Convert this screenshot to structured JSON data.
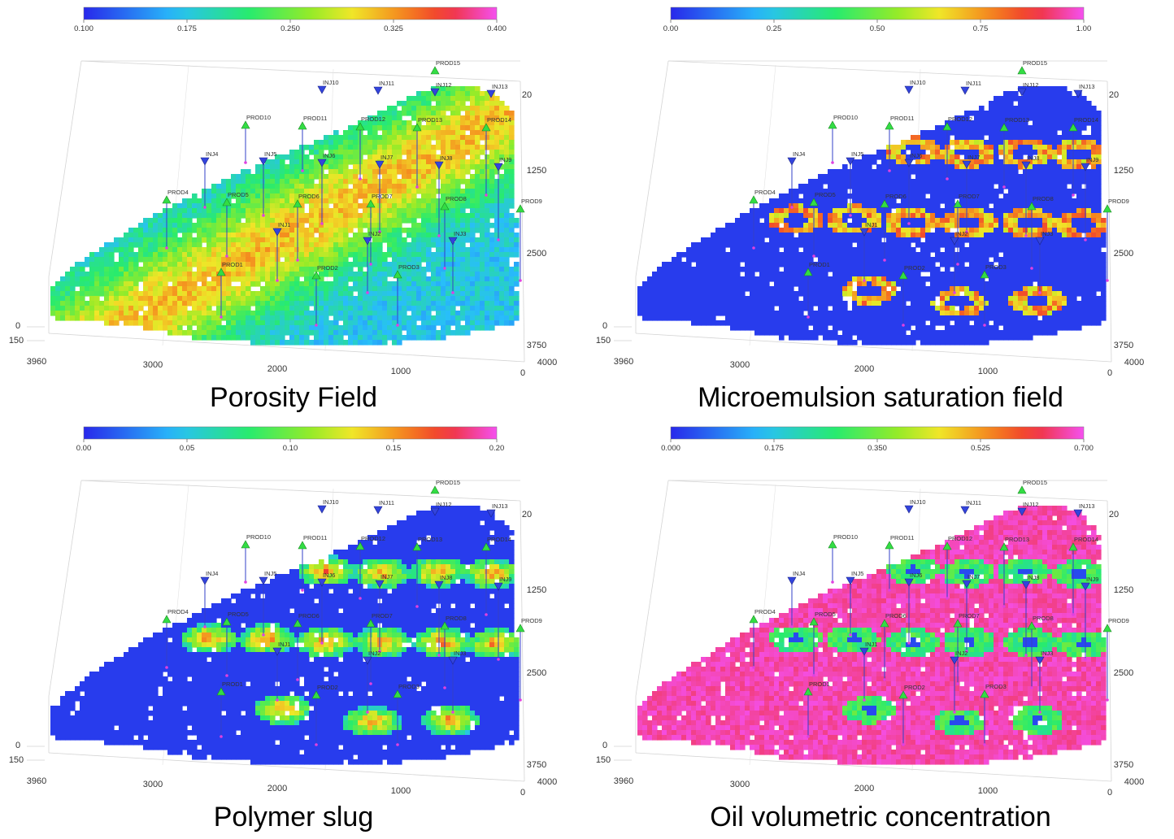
{
  "panels": [
    {
      "title": "Porosity Field",
      "colorbar": {
        "scheme": "jet-magenta",
        "ticks": [
          "0.100",
          "0.175",
          "0.250",
          "0.325",
          "0.400"
        ]
      },
      "field": "porosity",
      "axes": {
        "x_ticks": [
          "3960",
          "3000",
          "2000",
          "1000",
          "0"
        ],
        "y_ticks": [
          "20",
          "1250",
          "2500",
          "3750",
          "4000"
        ],
        "z_ticks": [
          "0",
          "150"
        ]
      }
    },
    {
      "title": "Microemulsion saturation field",
      "colorbar": {
        "scheme": "jet-magenta",
        "ticks": [
          "0.00",
          "0.25",
          "0.50",
          "0.75",
          "1.00"
        ]
      },
      "field": "microemulsion",
      "axes": {
        "x_ticks": [
          "3960",
          "3000",
          "2000",
          "1000",
          "0"
        ],
        "y_ticks": [
          "20",
          "1250",
          "2500",
          "3750",
          "4000"
        ],
        "z_ticks": [
          "0",
          "150"
        ]
      }
    },
    {
      "title": "Polymer slug",
      "colorbar": {
        "scheme": "jet-magenta",
        "ticks": [
          "0.00",
          "0.05",
          "0.10",
          "0.15",
          "0.20"
        ]
      },
      "field": "polymer",
      "axes": {
        "x_ticks": [
          "3960",
          "3000",
          "2000",
          "1000",
          "0"
        ],
        "y_ticks": [
          "20",
          "1250",
          "2500",
          "3750",
          "4000"
        ],
        "z_ticks": [
          "0",
          "150"
        ]
      }
    },
    {
      "title": "Oil volumetric concentration",
      "colorbar": {
        "scheme": "jet-magenta",
        "ticks": [
          "0.000",
          "0.175",
          "0.350",
          "0.525",
          "0.700"
        ]
      },
      "field": "oil",
      "axes": {
        "x_ticks": [
          "3960",
          "3000",
          "2000",
          "1000",
          "0"
        ],
        "y_ticks": [
          "20",
          "1250",
          "2500",
          "3750",
          "4000"
        ],
        "z_ticks": [
          "0",
          "150"
        ]
      }
    }
  ],
  "wells": [
    {
      "name": "PROD15",
      "type": "producer"
    },
    {
      "name": "INJ10",
      "type": "injector"
    },
    {
      "name": "INJ11",
      "type": "injector"
    },
    {
      "name": "INJ12",
      "type": "injector"
    },
    {
      "name": "INJ13",
      "type": "injector"
    },
    {
      "name": "PROD10",
      "type": "producer"
    },
    {
      "name": "PROD11",
      "type": "producer"
    },
    {
      "name": "PROD12",
      "type": "producer"
    },
    {
      "name": "PROD13",
      "type": "producer"
    },
    {
      "name": "PROD14",
      "type": "producer"
    },
    {
      "name": "INJ4",
      "type": "injector"
    },
    {
      "name": "INJ5",
      "type": "injector"
    },
    {
      "name": "INJ6",
      "type": "injector"
    },
    {
      "name": "INJ7",
      "type": "injector"
    },
    {
      "name": "INJ8",
      "type": "injector"
    },
    {
      "name": "INJ9",
      "type": "injector"
    },
    {
      "name": "PROD4",
      "type": "producer"
    },
    {
      "name": "PROD5",
      "type": "producer"
    },
    {
      "name": "PROD6",
      "type": "producer"
    },
    {
      "name": "PROD7",
      "type": "producer"
    },
    {
      "name": "PROD8",
      "type": "producer"
    },
    {
      "name": "PROD9",
      "type": "producer"
    },
    {
      "name": "INJ1",
      "type": "injector"
    },
    {
      "name": "INJ2",
      "type": "injector"
    },
    {
      "name": "INJ3",
      "type": "injector"
    },
    {
      "name": "PROD1",
      "type": "producer"
    },
    {
      "name": "PROD2",
      "type": "producer"
    },
    {
      "name": "PROD3",
      "type": "producer"
    }
  ],
  "chart_data": [
    {
      "type": "heatmap",
      "title": "Porosity Field",
      "colorbar_range": [
        0.1,
        0.4
      ],
      "colorbar_ticks": [
        0.1,
        0.175,
        0.25,
        0.325,
        0.4
      ],
      "x_axis_ticks": [
        3960,
        3000,
        2000,
        1000,
        0
      ],
      "y_axis_ticks": [
        20,
        1250,
        2500,
        3750,
        4000
      ],
      "z_axis_ticks": [
        0,
        150
      ]
    },
    {
      "type": "heatmap",
      "title": "Microemulsion saturation field",
      "colorbar_range": [
        0,
        1
      ],
      "colorbar_ticks": [
        0,
        0.25,
        0.5,
        0.75,
        1
      ],
      "x_axis_ticks": [
        3960,
        3000,
        2000,
        1000,
        0
      ],
      "y_axis_ticks": [
        20,
        1250,
        2500,
        3750,
        4000
      ],
      "z_axis_ticks": [
        0,
        150
      ]
    },
    {
      "type": "heatmap",
      "title": "Polymer slug",
      "colorbar_range": [
        0,
        0.2
      ],
      "colorbar_ticks": [
        0,
        0.05,
        0.1,
        0.15,
        0.2
      ],
      "x_axis_ticks": [
        3960,
        3000,
        2000,
        1000,
        0
      ],
      "y_axis_ticks": [
        20,
        1250,
        2500,
        3750,
        4000
      ],
      "z_axis_ticks": [
        0,
        150
      ]
    },
    {
      "type": "heatmap",
      "title": "Oil volumetric concentration",
      "colorbar_range": [
        0,
        0.7
      ],
      "colorbar_ticks": [
        0,
        0.175,
        0.35,
        0.525,
        0.7
      ],
      "x_axis_ticks": [
        3960,
        3000,
        2000,
        1000,
        0
      ],
      "y_axis_ticks": [
        20,
        1250,
        2500,
        3750,
        4000
      ],
      "z_axis_ticks": [
        0,
        150
      ]
    }
  ],
  "colors": {
    "injector": "#3344dd",
    "producer": "#33dd44",
    "base_blue": "#3a3fe0",
    "oil_magenta": "#ee3fd8"
  }
}
